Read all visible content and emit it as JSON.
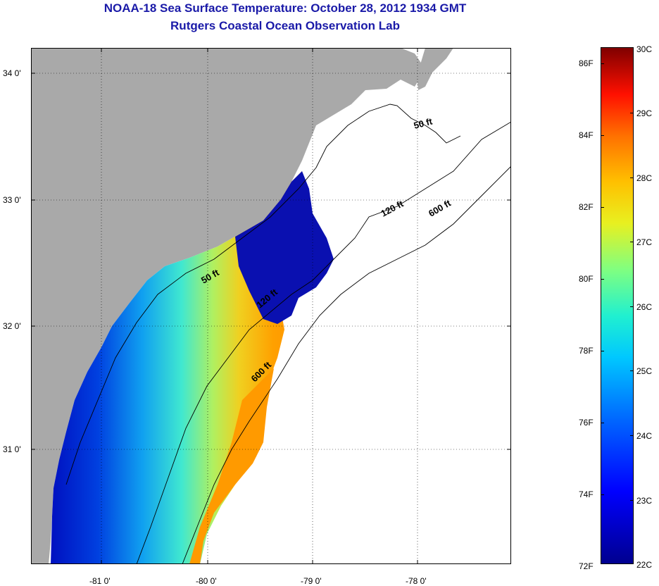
{
  "title": "NOAA-18 Sea Surface Temperature:  October 28, 2012 1934 GMT",
  "subtitle": "Rutgers Coastal Ocean Observation Lab",
  "map": {
    "lon_ticks": [
      "-81 0'",
      "-80 0'",
      "-79 0'",
      "-78 0'"
    ],
    "lat_ticks": [
      "34 0'",
      "33 0'",
      "32 0'",
      "31 0'"
    ],
    "contour_labels": [
      "50 ft",
      "120 ft",
      "600 ft",
      "50 ft",
      "120 ft",
      "600 ft"
    ],
    "colors": {
      "land": "#a9a9a9",
      "ocean_no_data": "#ffffff",
      "cold": "#0000c8",
      "warm": "#ffa000"
    }
  },
  "colorbar": {
    "fahrenheit": [
      "86F",
      "84F",
      "82F",
      "80F",
      "78F",
      "76F",
      "74F",
      "72F"
    ],
    "celsius": [
      "30C",
      "29C",
      "28C",
      "27C",
      "26C",
      "25C",
      "24C",
      "23C",
      "22C"
    ]
  }
}
